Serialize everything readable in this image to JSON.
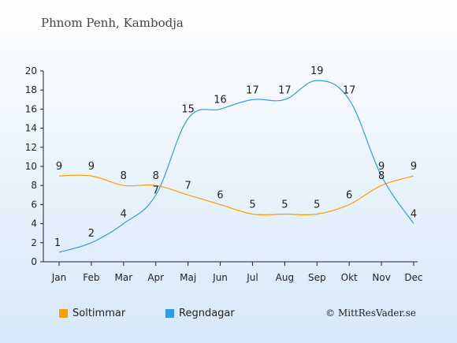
{
  "chart_data": {
    "type": "line",
    "title": "Phnom Penh, Kambodja",
    "categories": [
      "Jan",
      "Feb",
      "Mar",
      "Apr",
      "Maj",
      "Jun",
      "Jul",
      "Aug",
      "Sep",
      "Okt",
      "Nov",
      "Dec"
    ],
    "series": [
      {
        "name": "Soltimmar",
        "color": "#f5a000",
        "values": [
          9,
          9,
          8,
          8,
          7,
          6,
          5,
          5,
          5,
          6,
          8,
          9
        ]
      },
      {
        "name": "Regndagar",
        "color": "#3399e6",
        "values": [
          1,
          2,
          4,
          7,
          15,
          16,
          17,
          17,
          19,
          17,
          9,
          4
        ]
      }
    ],
    "ylim": [
      0,
      20
    ],
    "yticks": [
      0,
      2,
      4,
      6,
      8,
      10,
      12,
      14,
      16,
      18,
      20
    ],
    "grid": false,
    "legend_position": "bottom-left"
  },
  "copyright": "© MittResVader.se"
}
